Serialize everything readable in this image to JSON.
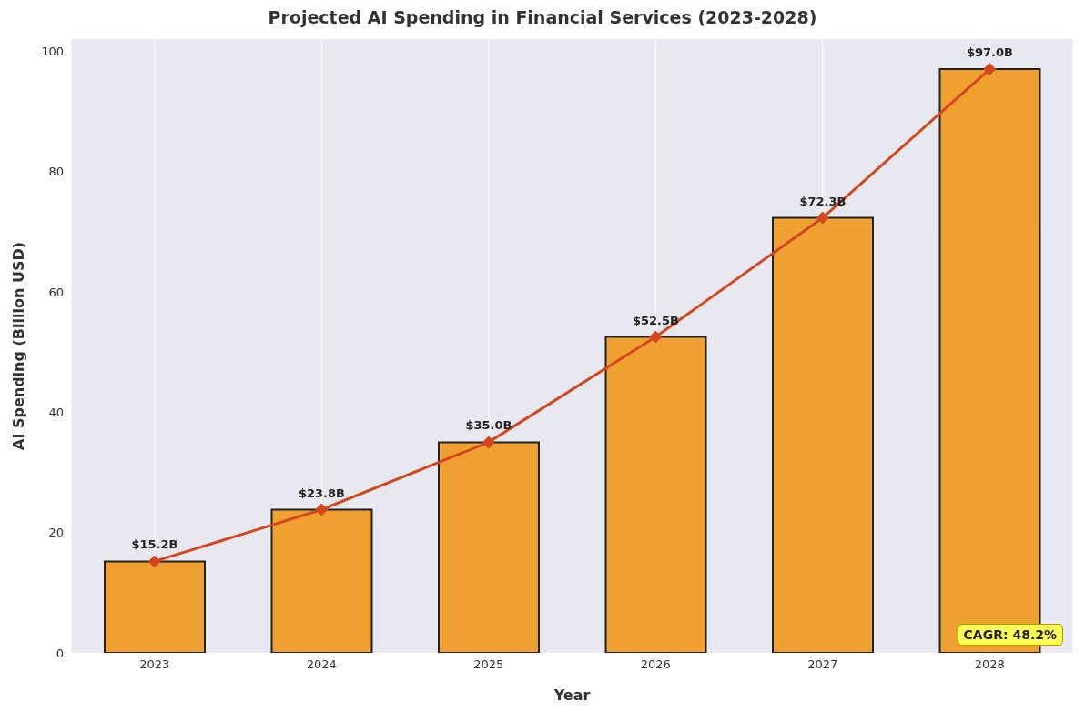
{
  "chart_data": {
    "type": "bar",
    "title": "Projected AI Spending in Financial Services (2023-2028)",
    "xlabel": "Year",
    "ylabel": "AI Spending (Billion USD)",
    "categories": [
      "2023",
      "2024",
      "2025",
      "2026",
      "2027",
      "2028"
    ],
    "series": [
      {
        "color": "#f0a030",
        "values": [
          15.2,
          23.8,
          35.0,
          52.5,
          72.3,
          97.0
        ],
        "value_labels": [
          "$15.2B",
          "$23.8B",
          "$35.0B",
          "$52.5B",
          "$72.3B",
          "$97.0B"
        ]
      },
      {
        "type": "line",
        "color": "#d2481e",
        "values": [
          15.2,
          23.8,
          35.0,
          52.5,
          72.3,
          97.0
        ]
      }
    ],
    "ylim": [
      0,
      102
    ],
    "yticks": [
      0,
      20,
      40,
      60,
      80,
      100
    ],
    "grid": "x",
    "marker": "diamond",
    "line_style": "solid",
    "annotations": [
      "CAGR: 48.2%"
    ]
  }
}
